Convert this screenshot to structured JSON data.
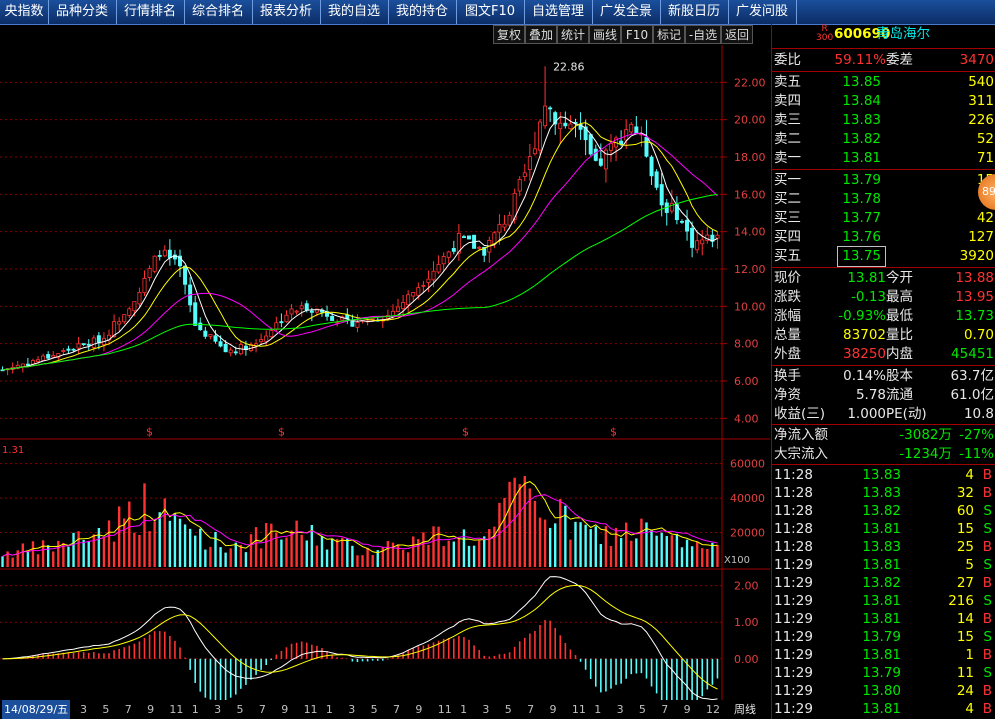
{
  "menu": [
    "央指数",
    "品种分类",
    "行情排名",
    "综合排名",
    "报表分析",
    "我的自选",
    "我的持仓",
    "图文F10",
    "自选管理",
    "广发全景",
    "新股日历",
    "广发问股"
  ],
  "toolbar": [
    "复权",
    "叠加",
    "统计",
    "画线",
    "F10",
    "标记",
    "-自选",
    "返回"
  ],
  "price_chart": {
    "y_ticks": [
      "22.00",
      "20.00",
      "18.00",
      "16.00",
      "14.00",
      "12.00",
      "10.00",
      "8.00",
      "6.00",
      "4.00"
    ],
    "y_values": [
      22,
      20,
      18,
      16,
      14,
      12,
      10,
      8,
      6,
      4
    ],
    "ylim": [
      3.0,
      24.0
    ],
    "high_label": "22.86",
    "dividend_marker": "$",
    "colors": {
      "up": "#ff3232",
      "down": "#54fcfc",
      "ma5": "#ffffff",
      "ma10": "#ffff00",
      "ma20": "#ff00ff",
      "ma60": "#00ff00",
      "grid": "#8b0000"
    }
  },
  "volume_chart": {
    "label": "1.31",
    "y_ticks": [
      "60000",
      "40000",
      "20000"
    ],
    "y_values": [
      60000,
      40000,
      20000
    ],
    "ylim": [
      0,
      72000
    ],
    "unit": "X100"
  },
  "macd_chart": {
    "y_ticks": [
      "2.00",
      "1.00",
      "0.00"
    ],
    "y_values": [
      2,
      1,
      0
    ],
    "ylim": [
      -1.1,
      2.4
    ]
  },
  "bottom_axis": {
    "first_date": "14/08/29/五",
    "ticks": [
      "3",
      "5",
      "7",
      "9",
      "11",
      "1",
      "3",
      "5",
      "7",
      "9",
      "11",
      "1",
      "3",
      "5",
      "7",
      "9",
      "11",
      "1",
      "3",
      "5",
      "7",
      "9",
      "11",
      "1",
      "3",
      "5",
      "7",
      "9",
      "12"
    ],
    "period": "周线"
  },
  "stock": {
    "badge_top": "R",
    "badge_bottom": "300",
    "code": "600690",
    "name": "青岛海尔"
  },
  "weibi": {
    "label1": "委比",
    "value1": "59.11%",
    "label2": "委差",
    "value2": "3470"
  },
  "asks": [
    {
      "label": "卖五",
      "price": "13.85",
      "vol": "540"
    },
    {
      "label": "卖四",
      "price": "13.84",
      "vol": "311"
    },
    {
      "label": "卖三",
      "price": "13.83",
      "vol": "226"
    },
    {
      "label": "卖二",
      "price": "13.82",
      "vol": "52"
    },
    {
      "label": "卖一",
      "price": "13.81",
      "vol": "71"
    }
  ],
  "bids": [
    {
      "label": "买一",
      "price": "13.79",
      "vol": "15"
    },
    {
      "label": "买二",
      "price": "13.78",
      "vol": ""
    },
    {
      "label": "买三",
      "price": "13.77",
      "vol": "42"
    },
    {
      "label": "买四",
      "price": "13.76",
      "vol": "127"
    },
    {
      "label": "买五",
      "price": "13.75",
      "vol": "3920"
    }
  ],
  "float_badge": "89",
  "stats": [
    {
      "l1": "现价",
      "v1": "13.81",
      "c1": "green",
      "l2": "今开",
      "v2": "13.88",
      "c2": "red"
    },
    {
      "l1": "涨跌",
      "v1": "-0.13",
      "c1": "green",
      "l2": "最高",
      "v2": "13.95",
      "c2": "red"
    },
    {
      "l1": "涨幅",
      "v1": "-0.93%",
      "c1": "green",
      "l2": "最低",
      "v2": "13.73",
      "c2": "green"
    },
    {
      "l1": "总量",
      "v1": "83702",
      "c1": "yellow",
      "l2": "量比",
      "v2": "0.70",
      "c2": "yellow"
    },
    {
      "l1": "外盘",
      "v1": "38250",
      "c1": "red",
      "l2": "内盘",
      "v2": "45451",
      "c2": "green"
    }
  ],
  "fundamentals": [
    {
      "l1": "换手",
      "v1": "0.14%",
      "l2": "股本",
      "v2": "63.7亿"
    },
    {
      "l1": "净资",
      "v1": "5.78",
      "l2": "流通",
      "v2": "61.0亿"
    },
    {
      "l1": "收益(三)",
      "v1": "1.000",
      "l2": "PE(动)",
      "v2": "10.8"
    }
  ],
  "flows": [
    {
      "label": "净流入额",
      "value": "-3082万",
      "pct": "-27%"
    },
    {
      "label": "大宗流入",
      "value": "-1234万",
      "pct": "-11%"
    }
  ],
  "ticks": [
    {
      "time": "11:28",
      "price": "13.83",
      "vol": "4",
      "side": "B"
    },
    {
      "time": "11:28",
      "price": "13.83",
      "vol": "32",
      "side": "B"
    },
    {
      "time": "11:28",
      "price": "13.82",
      "vol": "60",
      "side": "S"
    },
    {
      "time": "11:28",
      "price": "13.81",
      "vol": "15",
      "side": "S"
    },
    {
      "time": "11:28",
      "price": "13.83",
      "vol": "25",
      "side": "B"
    },
    {
      "time": "11:29",
      "price": "13.81",
      "vol": "5",
      "side": "S"
    },
    {
      "time": "11:29",
      "price": "13.82",
      "vol": "27",
      "side": "B"
    },
    {
      "time": "11:29",
      "price": "13.81",
      "vol": "216",
      "side": "S"
    },
    {
      "time": "11:29",
      "price": "13.81",
      "vol": "14",
      "side": "B"
    },
    {
      "time": "11:29",
      "price": "13.79",
      "vol": "15",
      "side": "S"
    },
    {
      "time": "11:29",
      "price": "13.81",
      "vol": "1",
      "side": "B"
    },
    {
      "time": "11:29",
      "price": "13.79",
      "vol": "11",
      "side": "S"
    },
    {
      "time": "11:29",
      "price": "13.80",
      "vol": "24",
      "side": "B"
    },
    {
      "time": "11:29",
      "price": "13.81",
      "vol": "4",
      "side": "B"
    }
  ],
  "chart_data": {
    "type": "candlestick",
    "period": "weekly",
    "anchors": [
      [
        0,
        6.6
      ],
      [
        10,
        7.4
      ],
      [
        20,
        8.3
      ],
      [
        27,
        10.8
      ],
      [
        31,
        13.0
      ],
      [
        35,
        12.0
      ],
      [
        38,
        9.0
      ],
      [
        44,
        7.6
      ],
      [
        50,
        8.0
      ],
      [
        56,
        9.6
      ],
      [
        60,
        10.0
      ],
      [
        64,
        9.6
      ],
      [
        68,
        9.1
      ],
      [
        72,
        9.3
      ],
      [
        76,
        9.5
      ],
      [
        80,
        10.5
      ],
      [
        86,
        12.3
      ],
      [
        90,
        13.6
      ],
      [
        95,
        13.0
      ],
      [
        100,
        15.0
      ],
      [
        104,
        17.8
      ],
      [
        107,
        21.0
      ],
      [
        110,
        19.8
      ],
      [
        113,
        19.7
      ],
      [
        117,
        17.4
      ],
      [
        121,
        18.8
      ],
      [
        124,
        19.9
      ],
      [
        127,
        18.3
      ],
      [
        130,
        15.5
      ],
      [
        133,
        15.0
      ],
      [
        136,
        13.4
      ],
      [
        139,
        13.6
      ],
      [
        141,
        13.81
      ]
    ],
    "volume_anchors": [
      [
        0,
        8000
      ],
      [
        10,
        12000
      ],
      [
        20,
        22000
      ],
      [
        28,
        35000
      ],
      [
        35,
        25000
      ],
      [
        44,
        12000
      ],
      [
        52,
        18000
      ],
      [
        60,
        20000
      ],
      [
        70,
        10000
      ],
      [
        80,
        14000
      ],
      [
        88,
        20000
      ],
      [
        95,
        15000
      ],
      [
        101,
        40000
      ],
      [
        104,
        42000
      ],
      [
        108,
        32000
      ],
      [
        113,
        22000
      ],
      [
        118,
        18000
      ],
      [
        125,
        22000
      ],
      [
        132,
        15000
      ],
      [
        138,
        12000
      ],
      [
        141,
        9000
      ]
    ]
  }
}
